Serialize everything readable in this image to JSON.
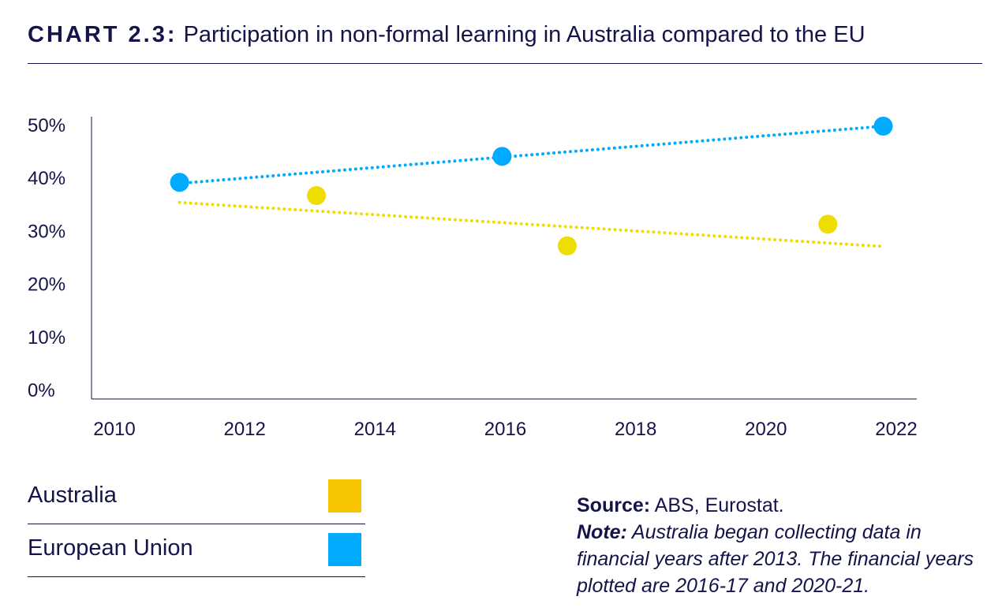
{
  "title_prefix": "CHART 2.3:",
  "title": "Participation in non-formal learning in Australia compared to the EU",
  "chart_data": {
    "type": "scatter",
    "title": "Participation in non-formal learning in Australia compared to the EU",
    "xlabel": "",
    "ylabel": "",
    "xlim": [
      2010,
      2022
    ],
    "ylim": [
      0,
      50
    ],
    "x_ticks": [
      "2010",
      "2012",
      "2014",
      "2016",
      "2018",
      "2020",
      "2022"
    ],
    "y_ticks": [
      "0%",
      "10%",
      "20%",
      "30%",
      "40%",
      "50%"
    ],
    "grid": false,
    "series": [
      {
        "name": "Australia",
        "color": "#eedd00",
        "legend_color": "#f7c600",
        "points": [
          {
            "x": 2013.1,
            "y": 36.6
          },
          {
            "x": 2016.95,
            "y": 27.1
          },
          {
            "x": 2020.95,
            "y": 31.2
          }
        ],
        "trendline": [
          {
            "x": 2011,
            "y": 35.3
          },
          {
            "x": 2021.8,
            "y": 27.0
          }
        ]
      },
      {
        "name": "European Union",
        "color": "#00aaff",
        "legend_color": "#00aaff",
        "points": [
          {
            "x": 2011,
            "y": 39.1
          },
          {
            "x": 2015.95,
            "y": 44.0
          },
          {
            "x": 2021.8,
            "y": 49.7
          }
        ],
        "trendline": [
          {
            "x": 2011,
            "y": 38.9
          },
          {
            "x": 2021.8,
            "y": 49.7
          }
        ]
      }
    ]
  },
  "legend": [
    {
      "label": "Australia",
      "color": "#f7c600"
    },
    {
      "label": "European Union",
      "color": "#00aaff"
    }
  ],
  "notes": {
    "source_label": "Source:",
    "source_text": " ABS, Eurostat.",
    "note_label": "Note:",
    "note_text": " Australia began collecting data in financial years after 2013. The financial years plotted are 2016-17 and 2020-21."
  }
}
